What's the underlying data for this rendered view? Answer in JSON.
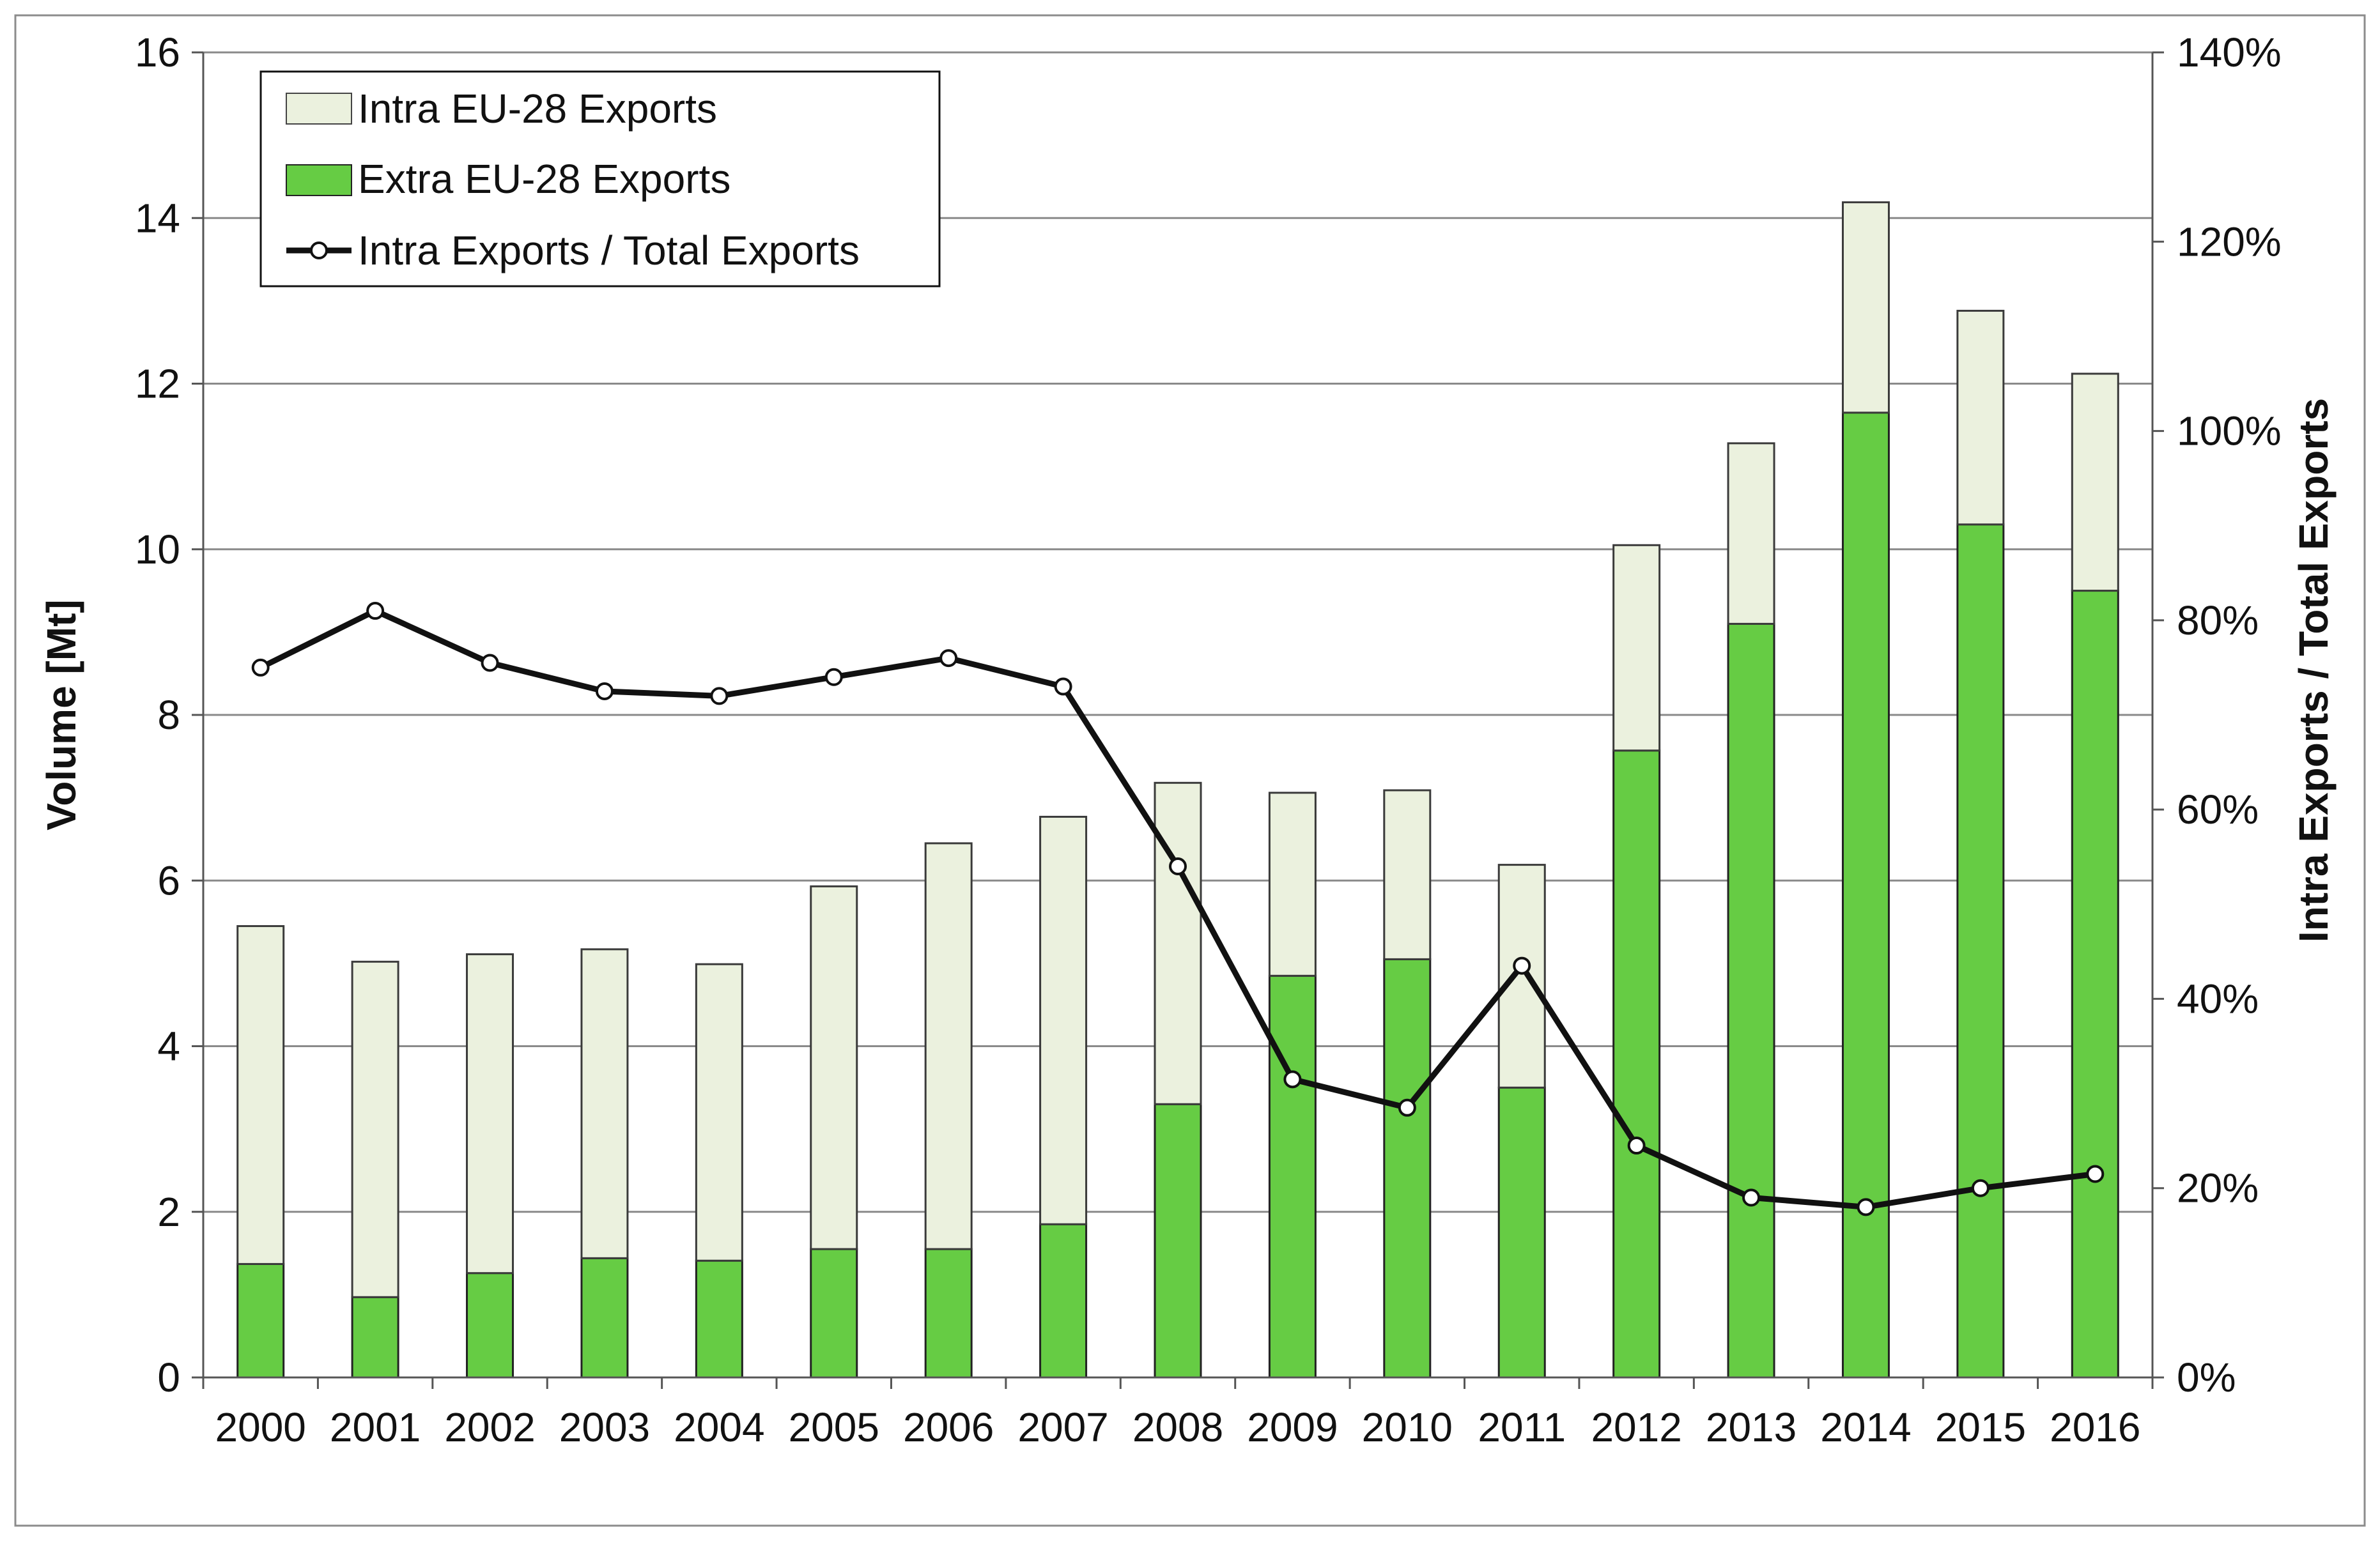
{
  "chart_data": {
    "type": "bar",
    "stacked": true,
    "categories": [
      "2000",
      "2001",
      "2002",
      "2003",
      "2004",
      "2005",
      "2006",
      "2007",
      "2008",
      "2009",
      "2010",
      "2011",
      "2012",
      "2013",
      "2014",
      "2015",
      "2016"
    ],
    "series": [
      {
        "name": "Extra EU-28 Exports",
        "kind": "bar",
        "axis": "left",
        "color": "#66cc44",
        "values": [
          1.37,
          0.97,
          1.26,
          1.44,
          1.41,
          1.55,
          1.55,
          1.85,
          3.3,
          4.85,
          5.05,
          3.5,
          7.57,
          9.1,
          11.65,
          10.3,
          9.5
        ]
      },
      {
        "name": "Intra EU-28 Exports",
        "kind": "bar",
        "axis": "left",
        "color": "#ebf1de",
        "values": [
          4.08,
          4.05,
          3.85,
          3.73,
          3.58,
          4.38,
          4.9,
          4.92,
          3.88,
          2.21,
          2.04,
          2.69,
          2.48,
          2.18,
          2.54,
          2.58,
          2.62
        ]
      },
      {
        "name": "Intra Exports / Total Exports",
        "kind": "line",
        "axis": "right",
        "color": "#111111",
        "values": [
          0.75,
          0.81,
          0.755,
          0.725,
          0.72,
          0.74,
          0.76,
          0.73,
          0.54,
          0.315,
          0.285,
          0.435,
          0.245,
          0.19,
          0.18,
          0.2,
          0.215
        ]
      }
    ],
    "title": "",
    "xlabel": "",
    "ylabel": "Volume [Mt]",
    "ylabel_right": "Intra Exports / Total Exports",
    "ylim": [
      0,
      16
    ],
    "yticks": [
      "0",
      "2",
      "4",
      "6",
      "8",
      "10",
      "12",
      "14",
      "16"
    ],
    "ylim_right": [
      0,
      1.4
    ],
    "yticks_right": [
      "0%",
      "20%",
      "40%",
      "60%",
      "80%",
      "100%",
      "120%",
      "140%"
    ],
    "grid": true,
    "legend_position": "top-left",
    "legend": [
      "Intra EU-28 Exports",
      "Extra EU-28 Exports",
      "Intra Exports / Total Exports"
    ]
  }
}
